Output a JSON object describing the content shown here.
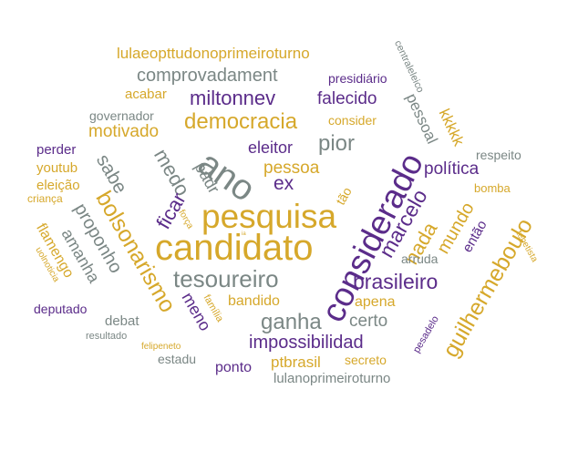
{
  "cloud": {
    "colors": {
      "gold": "#d6a82b",
      "purple": "#5b2c8a",
      "gray": "#7b8785"
    },
    "words": {
      "candidato": "candidato",
      "pesquisa": "pesquisa",
      "considerado": "considerado",
      "ano": "ano",
      "tesoureiro": "tesoureiro",
      "bolsonarismo": "bolsonarismo",
      "guilhermeboulo": "guilhermeboulo",
      "brasileiro": "brasileiro",
      "impossibilidad": "impossibilidad",
      "ganha": "ganha",
      "democracia": "democracia",
      "miltonnev": "miltonnev",
      "comprovadament": "comprovadament",
      "lulaeopttudonoprimeiroturno": "lulaeopttudonoprimeiroturno",
      "marcelo": "marcelo",
      "nada": "nada",
      "mundo": "mundo",
      "politica": "política",
      "pior": "pior",
      "eleitor": "eleitor",
      "pessoa": "pessoa",
      "ex": "ex",
      "medo": "medo",
      "padr": "padr",
      "sabe": "sabe",
      "ficar": "ficar",
      "proponho": "proponho",
      "amanha": "amanha",
      "flamengo": "flamengo",
      "motivado": "motivado",
      "falecido": "falecido",
      "pessoal": "pessoal",
      "kkkkk": "kkkkk",
      "centraleleico": "centraleleico",
      "presidiario": "presidiário",
      "acabar": "acabar",
      "governador": "governador",
      "consider": "consider",
      "perder": "perder",
      "youtub": "youtub",
      "eleicao": "eleição",
      "crianca": "criança",
      "respeito": "respeito",
      "bomba": "bomba",
      "entao": "então",
      "tebetista": "tebetista",
      "arruda": "arruda",
      "apena": "apena",
      "bandido": "bandido",
      "certo": "certo",
      "meno": "meno",
      "familia": "família",
      "forca": "força",
      "tao": "tão",
      "ia": "ia",
      "deputado": "deputado",
      "debat": "debat",
      "resultado": "resultado",
      "felipeneto": "felipeneto",
      "estadu": "estadu",
      "ponto": "ponto",
      "ptbrasil": "ptbrasil",
      "secreto": "secreto",
      "pesadelo": "pesadelo",
      "uolnoticia": "uolnoticia",
      "lulanoprimeiroturno": "lulanoprimeiroturno"
    }
  }
}
